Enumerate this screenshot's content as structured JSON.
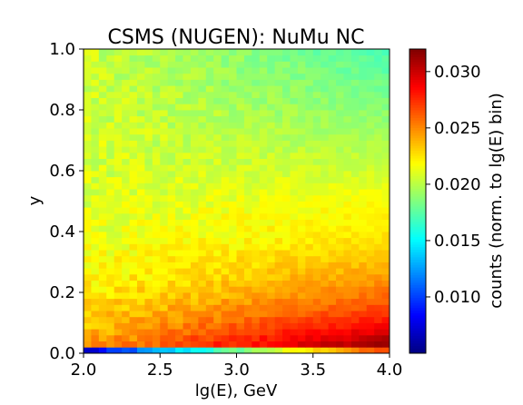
{
  "chart_data": {
    "type": "heatmap",
    "title": "CSMS (NUGEN): NuMu NC",
    "xlabel": "lg(E), GeV",
    "ylabel": "y",
    "xlim": [
      2.0,
      4.0
    ],
    "ylim": [
      0.0,
      1.0
    ],
    "x_bins": 40,
    "y_bins": 50,
    "x_ticks": [
      "2.0",
      "2.5",
      "3.0",
      "3.5",
      "4.0"
    ],
    "x_tick_values": [
      2.0,
      2.5,
      3.0,
      3.5,
      4.0
    ],
    "y_ticks": [
      "0.0",
      "0.2",
      "0.4",
      "0.6",
      "0.8",
      "1.0"
    ],
    "y_tick_values": [
      0.0,
      0.2,
      0.4,
      0.6,
      0.8,
      1.0
    ],
    "colormap": "jet",
    "colorbar": {
      "label": "counts (norm. to lg(E) bin)",
      "range": [
        0.005,
        0.032
      ],
      "ticks": [
        "0.010",
        "0.015",
        "0.020",
        "0.025",
        "0.030"
      ],
      "tick_values": [
        0.01,
        0.015,
        0.02,
        0.025,
        0.03
      ]
    },
    "description_values": {
      "low_y_low_E_row0": 0.006,
      "low_y_high_E": 0.031,
      "high_y_low_E": 0.019,
      "high_y_high_E": 0.015
    }
  }
}
